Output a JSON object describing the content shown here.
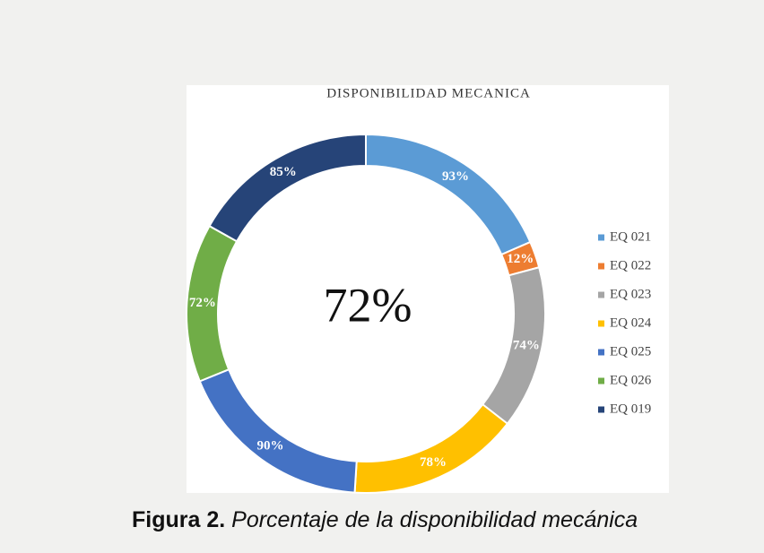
{
  "chart_data": {
    "type": "donut",
    "title": "DISPONIBILIDAD MECANICA",
    "center_label": "72%",
    "categories": [
      "EQ 021",
      "EQ 022",
      "EQ 023",
      "EQ 024",
      "EQ 025",
      "EQ 026",
      "EQ 019"
    ],
    "values": [
      93,
      12,
      74,
      78,
      90,
      72,
      85
    ],
    "value_labels": [
      "93%",
      "12%",
      "74%",
      "78%",
      "90%",
      "72%",
      "85%"
    ],
    "colors": [
      "#5b9bd5",
      "#ed7d31",
      "#a5a5a5",
      "#ffc000",
      "#4472c4",
      "#70ad47",
      "#264478"
    ],
    "legend": "right"
  },
  "caption": {
    "bold": "Figura 2.",
    "italic": "Porcentaje de la disponibilidad mecánica"
  }
}
